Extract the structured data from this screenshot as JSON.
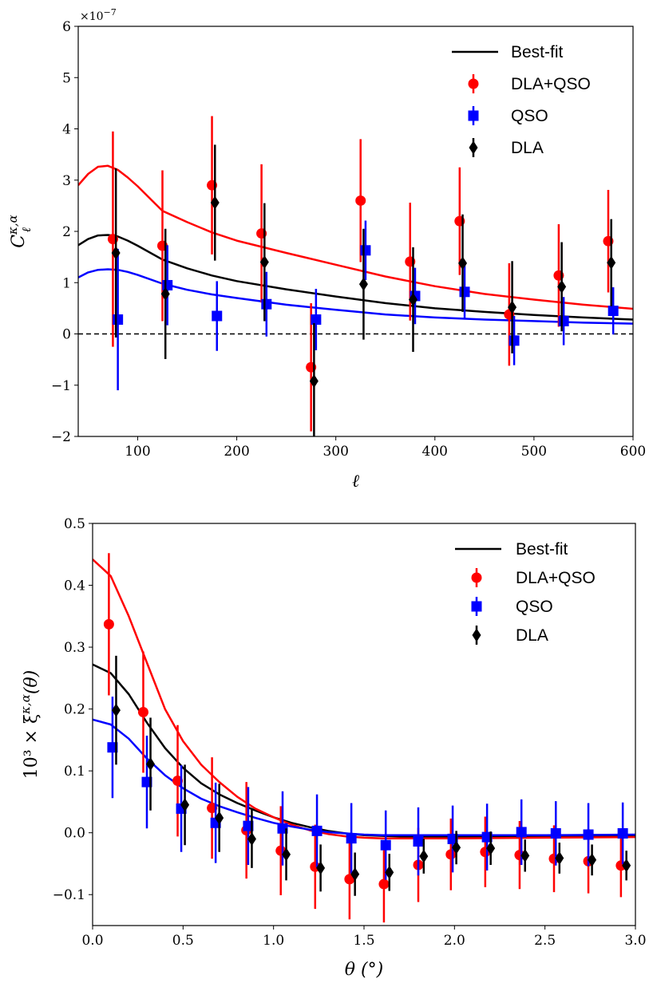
{
  "chart_data": [
    {
      "type": "scatter",
      "xlabel": "ℓ",
      "ylabel": "C",
      "ylabel_superscript": "κ,α",
      "ylabel_subscript": "ℓ",
      "y_scale_label": "×10",
      "y_scale_exponent": "−7",
      "xlim": [
        40,
        600
      ],
      "ylim": [
        -2,
        6
      ],
      "xticks": [
        100,
        200,
        300,
        400,
        500,
        600
      ],
      "yticks": [
        -2,
        -1,
        0,
        1,
        2,
        3,
        4,
        5,
        6
      ],
      "xtick_labels": [
        "100",
        "200",
        "300",
        "400",
        "500",
        "600"
      ],
      "ytick_labels": [
        "−2",
        "−1",
        "0",
        "1",
        "2",
        "3",
        "4",
        "5",
        "6"
      ],
      "zero_line": true,
      "legend": {
        "position": "top-right",
        "entries": [
          "Best-fit",
          "DLA+QSO",
          "QSO",
          "DLA"
        ]
      },
      "series": [
        {
          "name": "DLA+QSO",
          "color": "#ff0000",
          "marker": "circle",
          "x": [
            75,
            125,
            175,
            225,
            275,
            325,
            375,
            425,
            475,
            525,
            575
          ],
          "y": [
            1.85,
            1.72,
            2.9,
            1.96,
            -0.65,
            2.6,
            1.41,
            2.2,
            0.38,
            1.14,
            1.81
          ],
          "err": [
            2.1,
            1.47,
            1.35,
            1.35,
            1.25,
            1.2,
            1.15,
            1.05,
            1.0,
            1.0,
            1.0
          ]
        },
        {
          "name": "QSO",
          "color": "#0000ff",
          "marker": "square",
          "x": [
            80,
            130,
            180,
            230,
            280,
            330,
            380,
            430,
            480,
            530,
            580
          ],
          "y": [
            0.28,
            0.95,
            0.35,
            0.58,
            0.28,
            1.63,
            0.74,
            0.82,
            -0.13,
            0.25,
            0.45
          ],
          "err": [
            1.38,
            0.78,
            0.68,
            0.63,
            0.6,
            0.58,
            0.55,
            0.52,
            0.48,
            0.47,
            0.46
          ]
        },
        {
          "name": "DLA",
          "color": "#000000",
          "marker": "diamond",
          "x": [
            78,
            128,
            178,
            228,
            278,
            328,
            378,
            428,
            478,
            528,
            578
          ],
          "y": [
            1.58,
            0.78,
            2.56,
            1.4,
            -0.92,
            0.97,
            0.67,
            1.38,
            0.52,
            0.92,
            1.39
          ],
          "err": [
            1.65,
            1.27,
            1.13,
            1.15,
            1.13,
            1.08,
            1.02,
            0.95,
            0.9,
            0.87,
            0.85
          ]
        }
      ],
      "curves": [
        {
          "name": "Best-fit",
          "color": "#000000",
          "x": [
            40,
            50,
            60,
            70,
            80,
            90,
            100,
            125,
            150,
            175,
            200,
            250,
            300,
            350,
            400,
            450,
            500,
            550,
            600
          ],
          "y": [
            1.73,
            1.85,
            1.92,
            1.93,
            1.9,
            1.82,
            1.72,
            1.45,
            1.28,
            1.14,
            1.03,
            0.87,
            0.73,
            0.6,
            0.5,
            0.43,
            0.37,
            0.32,
            0.28
          ]
        },
        {
          "name": "Best-fit (DLA+QSO)",
          "color": "#ff0000",
          "x": [
            40,
            50,
            60,
            70,
            80,
            90,
            100,
            125,
            150,
            175,
            200,
            250,
            300,
            350,
            400,
            450,
            500,
            550,
            600
          ],
          "y": [
            2.9,
            3.12,
            3.26,
            3.28,
            3.2,
            3.05,
            2.88,
            2.4,
            2.18,
            1.98,
            1.82,
            1.58,
            1.35,
            1.12,
            0.93,
            0.78,
            0.67,
            0.57,
            0.49
          ]
        },
        {
          "name": "Best-fit (QSO)",
          "color": "#0000ff",
          "x": [
            40,
            50,
            60,
            70,
            80,
            90,
            100,
            125,
            150,
            175,
            200,
            250,
            300,
            350,
            400,
            450,
            500,
            550,
            600
          ],
          "y": [
            1.1,
            1.2,
            1.25,
            1.26,
            1.25,
            1.21,
            1.15,
            0.98,
            0.86,
            0.77,
            0.7,
            0.57,
            0.47,
            0.38,
            0.32,
            0.28,
            0.25,
            0.22,
            0.2
          ]
        }
      ]
    },
    {
      "type": "scatter",
      "xlabel": "θ (°)",
      "ylabel": "10³ × ξ",
      "ylabel_superscript": "κ,α",
      "ylabel_suffix": "(θ)",
      "xlim": [
        0,
        3
      ],
      "ylim": [
        -0.15,
        0.5
      ],
      "xticks": [
        0,
        0.5,
        1.0,
        1.5,
        2.0,
        2.5,
        3.0
      ],
      "yticks": [
        -0.1,
        0,
        0.1,
        0.2,
        0.3,
        0.4,
        0.5
      ],
      "xtick_labels": [
        "0.0",
        "0.5",
        "1.0",
        "1.5",
        "2.0",
        "2.5",
        "3.0"
      ],
      "ytick_labels": [
        "−0.1",
        "0.0",
        "0.1",
        "0.2",
        "0.3",
        "0.4",
        "0.5"
      ],
      "legend": {
        "position": "top-right",
        "entries": [
          "Best-fit",
          "DLA+QSO",
          "QSO",
          "DLA"
        ]
      },
      "series": [
        {
          "name": "DLA+QSO",
          "color": "#ff0000",
          "marker": "circle",
          "x": [
            0.09,
            0.28,
            0.47,
            0.66,
            0.85,
            1.04,
            1.23,
            1.42,
            1.61,
            1.8,
            1.98,
            2.17,
            2.36,
            2.55,
            2.74,
            2.92
          ],
          "y": [
            0.337,
            0.195,
            0.084,
            0.04,
            0.004,
            -0.029,
            -0.055,
            -0.075,
            -0.083,
            -0.052,
            -0.035,
            -0.031,
            -0.036,
            -0.042,
            -0.046,
            -0.053
          ],
          "err": [
            0.115,
            0.098,
            0.09,
            0.082,
            0.078,
            0.072,
            0.068,
            0.065,
            0.062,
            0.06,
            0.058,
            0.057,
            0.055,
            0.054,
            0.052,
            0.051
          ]
        },
        {
          "name": "QSO",
          "color": "#0000ff",
          "marker": "square",
          "x": [
            0.11,
            0.3,
            0.49,
            0.68,
            0.86,
            1.05,
            1.24,
            1.43,
            1.62,
            1.8,
            1.99,
            2.18,
            2.37,
            2.56,
            2.74,
            2.93
          ],
          "y": [
            0.138,
            0.082,
            0.039,
            0.016,
            0.011,
            0.007,
            0.003,
            -0.009,
            -0.02,
            -0.014,
            -0.01,
            -0.007,
            0.001,
            -0.001,
            -0.003,
            -0.001
          ],
          "err": [
            0.082,
            0.075,
            0.07,
            0.065,
            0.063,
            0.06,
            0.059,
            0.057,
            0.056,
            0.055,
            0.054,
            0.054,
            0.053,
            0.052,
            0.051,
            0.05
          ]
        },
        {
          "name": "DLA",
          "color": "#000000",
          "marker": "diamond",
          "x": [
            0.13,
            0.32,
            0.51,
            0.7,
            0.88,
            1.07,
            1.26,
            1.45,
            1.64,
            1.83,
            2.01,
            2.2,
            2.39,
            2.58,
            2.76,
            2.95
          ],
          "y": [
            0.198,
            0.111,
            0.045,
            0.024,
            -0.01,
            -0.035,
            -0.057,
            -0.067,
            -0.064,
            -0.038,
            -0.024,
            -0.025,
            -0.037,
            -0.041,
            -0.044,
            -0.053
          ],
          "err": [
            0.088,
            0.075,
            0.065,
            0.055,
            0.047,
            0.042,
            0.038,
            0.035,
            0.03,
            0.028,
            0.027,
            0.027,
            0.026,
            0.025,
            0.025,
            0.024
          ]
        }
      ],
      "curves": [
        {
          "name": "Best-fit",
          "color": "#000000",
          "x": [
            0,
            0.1,
            0.2,
            0.3,
            0.4,
            0.5,
            0.6,
            0.7,
            0.8,
            0.9,
            1.0,
            1.1,
            1.2,
            1.3,
            1.4,
            1.5,
            1.6,
            1.7,
            1.8,
            2.0,
            2.5,
            3.0
          ],
          "y": [
            0.272,
            0.258,
            0.224,
            0.178,
            0.137,
            0.105,
            0.08,
            0.062,
            0.048,
            0.036,
            0.025,
            0.016,
            0.009,
            0.003,
            -0.001,
            -0.004,
            -0.005,
            -0.006,
            -0.006,
            -0.006,
            -0.006,
            -0.005
          ]
        },
        {
          "name": "Best-fit (DLA+QSO)",
          "color": "#ff0000",
          "x": [
            0,
            0.1,
            0.2,
            0.3,
            0.4,
            0.5,
            0.6,
            0.7,
            0.8,
            0.9,
            1.0,
            1.1,
            1.2,
            1.3,
            1.4,
            1.5,
            1.6,
            1.7,
            1.8,
            2.0,
            2.5,
            3.0
          ],
          "y": [
            0.442,
            0.415,
            0.35,
            0.275,
            0.2,
            0.148,
            0.11,
            0.082,
            0.058,
            0.039,
            0.025,
            0.013,
            0.004,
            -0.002,
            -0.006,
            -0.008,
            -0.009,
            -0.009,
            -0.009,
            -0.009,
            -0.008,
            -0.007
          ]
        },
        {
          "name": "Best-fit (QSO)",
          "color": "#0000ff",
          "x": [
            0,
            0.1,
            0.2,
            0.3,
            0.4,
            0.5,
            0.6,
            0.7,
            0.8,
            0.9,
            1.0,
            1.1,
            1.2,
            1.3,
            1.4,
            1.5,
            1.6,
            1.7,
            1.8,
            2.0,
            2.5,
            3.0
          ],
          "y": [
            0.183,
            0.175,
            0.152,
            0.12,
            0.093,
            0.072,
            0.055,
            0.043,
            0.033,
            0.024,
            0.016,
            0.01,
            0.005,
            0.001,
            -0.001,
            -0.003,
            -0.004,
            -0.004,
            -0.004,
            -0.004,
            -0.004,
            -0.003
          ]
        }
      ]
    }
  ]
}
